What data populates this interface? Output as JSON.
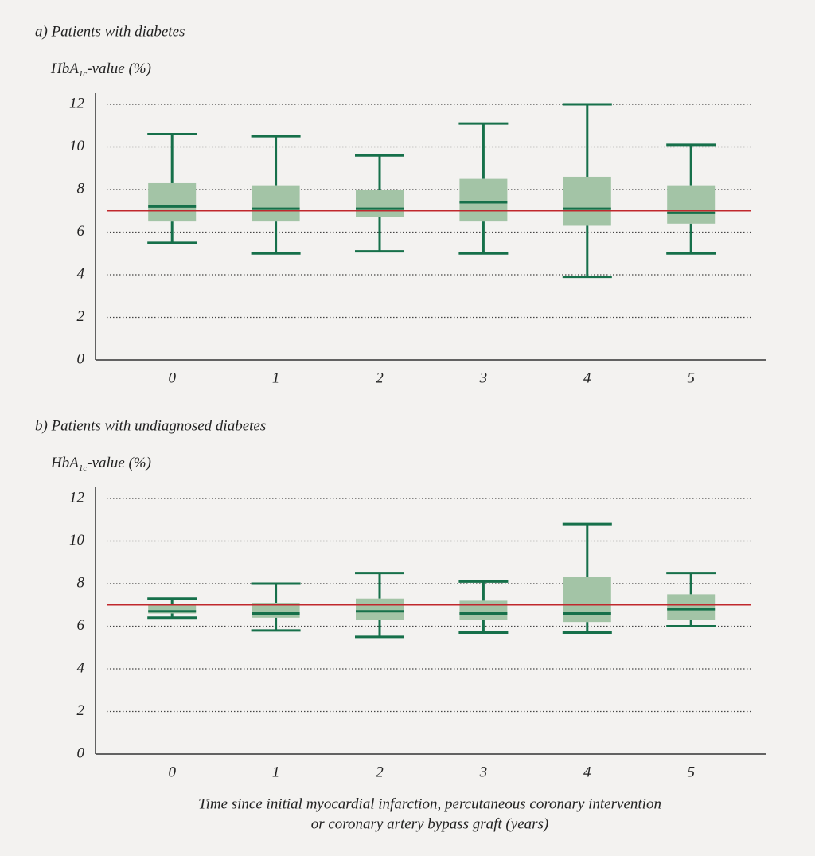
{
  "chart_data": [
    {
      "type": "box",
      "title": "a) Patients with diabetes",
      "ylabel": [
        "HbA",
        "1c",
        "-value (%)"
      ],
      "categories": [
        "0",
        "1",
        "2",
        "3",
        "4",
        "5"
      ],
      "min": [
        5.5,
        5.0,
        5.1,
        5.0,
        3.9,
        5.0
      ],
      "q1": [
        6.5,
        6.5,
        6.7,
        6.5,
        6.3,
        6.4
      ],
      "median": [
        7.2,
        7.1,
        7.1,
        7.4,
        7.1,
        6.9
      ],
      "q3": [
        8.3,
        8.2,
        8.0,
        8.5,
        8.6,
        8.2
      ],
      "max": [
        10.6,
        10.5,
        9.6,
        11.1,
        12.0,
        10.1
      ],
      "box_color": "#a3c4a6",
      "line_color": "#16704a",
      "reference_line": 7,
      "reference_color": "#c0282d",
      "ylim": [
        0,
        12
      ],
      "yticks": [
        0,
        2,
        4,
        6,
        8,
        10,
        12
      ],
      "grid": true
    },
    {
      "type": "box",
      "title": "b) Patients with undiagnosed diabetes",
      "ylabel": [
        "HbA",
        "1c",
        "-value (%)"
      ],
      "categories": [
        "0",
        "1",
        "2",
        "3",
        "4",
        "5"
      ],
      "min": [
        6.4,
        5.8,
        5.5,
        5.7,
        5.7,
        6.0
      ],
      "q1": [
        6.6,
        6.4,
        6.3,
        6.3,
        6.2,
        6.3
      ],
      "median": [
        6.7,
        6.6,
        6.7,
        6.6,
        6.6,
        6.8
      ],
      "q3": [
        7.0,
        7.1,
        7.3,
        7.2,
        8.3,
        7.5
      ],
      "max": [
        7.3,
        8.0,
        8.5,
        8.1,
        10.8,
        8.5
      ],
      "box_color": "#a3c4a6",
      "line_color": "#16704a",
      "reference_line": 7,
      "reference_color": "#c0282d",
      "ylim": [
        0,
        12
      ],
      "yticks": [
        0,
        2,
        4,
        6,
        8,
        10,
        12
      ],
      "grid": true,
      "xlabel": [
        "Time since initial myocardial infarction, percutaneous coronary intervention",
        "or coronary artery bypass graft (years)"
      ]
    }
  ]
}
